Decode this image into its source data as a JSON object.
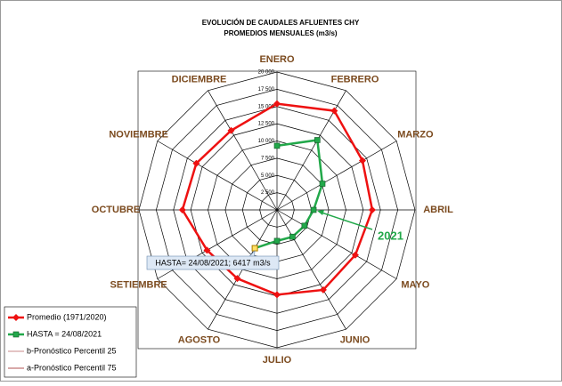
{
  "chart_data": {
    "type": "radar",
    "title": "EVOLUCIÓN DE CAUDALES AFLUENTES CHY",
    "subtitle": "PROMEDIOS MENSUALES (m3/s)",
    "categories": [
      "ENERO",
      "FEBRERO",
      "MARZO",
      "ABRIL",
      "MAYO",
      "JUNIO",
      "JULIO",
      "AGOSTO",
      "SETIEMBRE",
      "OCTUBRE",
      "NOVIEMBRE",
      "DICIEMBRE"
    ],
    "series": [
      {
        "name": "Promedio (1971/2020)",
        "color": "#ee1111",
        "marker": "diamond",
        "values": [
          15400,
          16600,
          14300,
          13800,
          13100,
          13400,
          12300,
          11500,
          11700,
          13700,
          13500,
          13300
        ]
      },
      {
        "name": "HASTA = 24/08/2021",
        "color": "#22a84a",
        "marker": "square",
        "values": [
          9300,
          11700,
          7600,
          5300,
          4600,
          4500,
          4500,
          6417,
          null,
          null,
          null,
          null
        ]
      },
      {
        "name": "b-Pronóstico Percentil 25",
        "color": "#c98a8a",
        "marker": "none",
        "values": [
          null,
          null,
          null,
          null,
          null,
          null,
          null,
          null,
          null,
          null,
          null,
          null
        ]
      },
      {
        "name": "a-Pronóstico Percentil 75",
        "color": "#b05050",
        "marker": "none",
        "values": [
          null,
          null,
          null,
          null,
          null,
          null,
          null,
          null,
          null,
          null,
          null,
          null
        ]
      }
    ],
    "rlim": [
      0,
      20000
    ],
    "rticks": [
      {
        "value": 2500,
        "label": "2 500"
      },
      {
        "value": 5000,
        "label": "5 000"
      },
      {
        "value": 7500,
        "label": "7 500"
      },
      {
        "value": 10000,
        "label": "10 000"
      },
      {
        "value": 12500,
        "label": "12 500"
      },
      {
        "value": 15000,
        "label": "15 000"
      },
      {
        "value": 17500,
        "label": "17 500"
      },
      {
        "value": 20000,
        "label": "20 000"
      }
    ],
    "annotations": [
      "2021",
      "HASTA= 24/08/2021; 6417 m3/s"
    ],
    "legend": "bottom-left"
  }
}
